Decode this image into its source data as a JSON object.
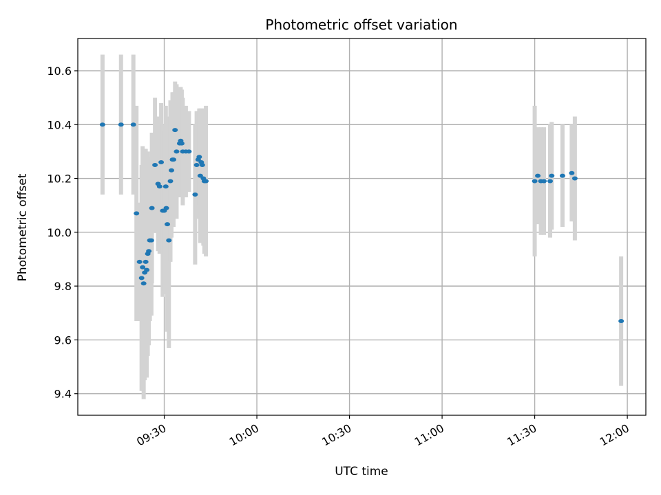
{
  "chart_data": {
    "type": "scatter",
    "title": "Photometric offset variation",
    "xlabel": "UTC time",
    "ylabel": "Photometric offset",
    "x_ticks": [
      "09:30",
      "10:00",
      "10:30",
      "11:00",
      "11:30",
      "12:00"
    ],
    "y_ticks": [
      "9.4",
      "9.6",
      "9.8",
      "10.0",
      "10.2",
      "10.4",
      "10.6"
    ],
    "xlim": [
      "09:02",
      "12:06"
    ],
    "ylim": [
      9.32,
      10.72
    ],
    "grid": true,
    "colors": {
      "point": "#1f77b4",
      "errorbar": "#d3d3d3",
      "grid": "#b0b0b0"
    },
    "points": [
      {
        "t": "09:10",
        "y": 10.4,
        "err": 0.26
      },
      {
        "t": "09:16",
        "y": 10.4,
        "err": 0.26
      },
      {
        "t": "09:20",
        "y": 10.4,
        "err": 0.26
      },
      {
        "t": "09:21",
        "y": 10.07,
        "err": 0.4
      },
      {
        "t": "09:22",
        "y": 9.89,
        "err": 0.22
      },
      {
        "t": "09:22:40",
        "y": 9.83,
        "err": 0.42
      },
      {
        "t": "09:23",
        "y": 9.87,
        "err": 0.45
      },
      {
        "t": "09:23:20",
        "y": 9.81,
        "err": 0.43
      },
      {
        "t": "09:23:40",
        "y": 9.85,
        "err": 0.4
      },
      {
        "t": "09:24",
        "y": 9.89,
        "err": 0.42
      },
      {
        "t": "09:24:20",
        "y": 9.86,
        "err": 0.4
      },
      {
        "t": "09:24:40",
        "y": 9.92,
        "err": 0.38
      },
      {
        "t": "09:25",
        "y": 9.93,
        "err": 0.35
      },
      {
        "t": "09:25:20",
        "y": 9.97,
        "err": 0.3
      },
      {
        "t": "09:25:50",
        "y": 9.97,
        "err": 0.28
      },
      {
        "t": "09:26",
        "y": 10.09,
        "err": 0.28
      },
      {
        "t": "09:27",
        "y": 10.25,
        "err": 0.25
      },
      {
        "t": "09:28",
        "y": 10.18,
        "err": 0.25
      },
      {
        "t": "09:28:30",
        "y": 10.17,
        "err": 0.25
      },
      {
        "t": "09:29",
        "y": 10.26,
        "err": 0.22
      },
      {
        "t": "09:29:30",
        "y": 10.08,
        "err": 0.32
      },
      {
        "t": "09:30",
        "y": 10.08,
        "err": 0.3
      },
      {
        "t": "09:30:30",
        "y": 10.17,
        "err": 0.3
      },
      {
        "t": "09:30:40",
        "y": 10.09,
        "err": 0.32
      },
      {
        "t": "09:31",
        "y": 10.03,
        "err": 0.4
      },
      {
        "t": "09:31:30",
        "y": 9.97,
        "err": 0.4
      },
      {
        "t": "09:32",
        "y": 10.19,
        "err": 0.3
      },
      {
        "t": "09:32:20",
        "y": 10.23,
        "err": 0.25
      },
      {
        "t": "09:32:40",
        "y": 10.27,
        "err": 0.25
      },
      {
        "t": "09:33",
        "y": 10.27,
        "err": 0.25
      },
      {
        "t": "09:33:30",
        "y": 10.38,
        "err": 0.18
      },
      {
        "t": "09:34",
        "y": 10.3,
        "err": 0.25
      },
      {
        "t": "09:35",
        "y": 10.33,
        "err": 0.2
      },
      {
        "t": "09:35:20",
        "y": 10.34,
        "err": 0.2
      },
      {
        "t": "09:35:40",
        "y": 10.33,
        "err": 0.2
      },
      {
        "t": "09:36",
        "y": 10.3,
        "err": 0.2
      },
      {
        "t": "09:37",
        "y": 10.3,
        "err": 0.17
      },
      {
        "t": "09:38",
        "y": 10.3,
        "err": 0.15
      },
      {
        "t": "09:40",
        "y": 10.14,
        "err": 0.26
      },
      {
        "t": "09:40:30",
        "y": 10.25,
        "err": 0.2
      },
      {
        "t": "09:41",
        "y": 10.27,
        "err": 0.18
      },
      {
        "t": "09:41:20",
        "y": 10.28,
        "err": 0.18
      },
      {
        "t": "09:41:40",
        "y": 10.21,
        "err": 0.25
      },
      {
        "t": "09:42",
        "y": 10.26,
        "err": 0.2
      },
      {
        "t": "09:42:20",
        "y": 10.25,
        "err": 0.2
      },
      {
        "t": "09:42:40",
        "y": 10.2,
        "err": 0.25
      },
      {
        "t": "09:43",
        "y": 10.19,
        "err": 0.27
      },
      {
        "t": "09:43:30",
        "y": 10.19,
        "err": 0.28
      },
      {
        "t": "11:30",
        "y": 10.19,
        "err": 0.28
      },
      {
        "t": "11:31",
        "y": 10.21,
        "err": 0.18
      },
      {
        "t": "11:32",
        "y": 10.19,
        "err": 0.2
      },
      {
        "t": "11:33",
        "y": 10.19,
        "err": 0.2
      },
      {
        "t": "11:35",
        "y": 10.19,
        "err": 0.21
      },
      {
        "t": "11:35:30",
        "y": 10.21,
        "err": 0.2
      },
      {
        "t": "11:39",
        "y": 10.21,
        "err": 0.19
      },
      {
        "t": "11:42",
        "y": 10.22,
        "err": 0.18
      },
      {
        "t": "11:43",
        "y": 10.2,
        "err": 0.23
      },
      {
        "t": "11:58",
        "y": 9.67,
        "err": 0.24
      }
    ]
  }
}
